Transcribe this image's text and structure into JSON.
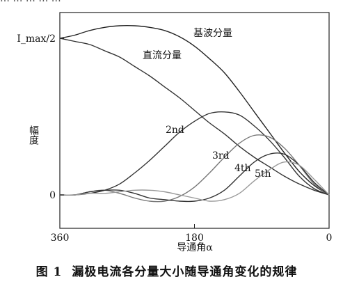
{
  "chart_data": {
    "type": "line",
    "x": [
      360,
      340,
      320,
      300,
      280,
      260,
      240,
      220,
      200,
      180,
      160,
      140,
      120,
      100,
      80,
      60,
      40,
      20,
      0
    ],
    "x_axis": {
      "label": "导通角α",
      "ticks": [
        "360",
        "180",
        "0"
      ],
      "range": [
        360,
        0
      ],
      "reversed": true
    },
    "y_axis": {
      "label": "幅度",
      "ticks": [
        "I_max/2",
        "0"
      ],
      "range_normalized": [
        0,
        1
      ]
    },
    "series": [
      {
        "name": "基波分量",
        "values": [
          1.0,
          1.02,
          1.05,
          1.07,
          1.08,
          1.08,
          1.07,
          1.05,
          1.01,
          0.95,
          0.87,
          0.78,
          0.66,
          0.53,
          0.4,
          0.27,
          0.15,
          0.06,
          0.0
        ]
      },
      {
        "name": "直流分量",
        "values": [
          1.0,
          0.98,
          0.96,
          0.92,
          0.88,
          0.82,
          0.76,
          0.69,
          0.62,
          0.54,
          0.46,
          0.39,
          0.31,
          0.24,
          0.18,
          0.12,
          0.07,
          0.03,
          0.0
        ]
      },
      {
        "name": "2nd",
        "values": [
          0.0,
          0.0,
          0.01,
          0.03,
          0.07,
          0.14,
          0.22,
          0.31,
          0.4,
          0.47,
          0.52,
          0.53,
          0.51,
          0.44,
          0.35,
          0.24,
          0.12,
          0.04,
          0.0
        ]
      },
      {
        "name": "3rd",
        "values": [
          0.0,
          0.0,
          0.02,
          0.03,
          0.01,
          -0.02,
          -0.04,
          -0.04,
          -0.01,
          0.05,
          0.14,
          0.24,
          0.33,
          0.38,
          0.37,
          0.3,
          0.19,
          0.07,
          0.0
        ]
      },
      {
        "name": "4th",
        "values": [
          0.0,
          0.0,
          0.02,
          0.03,
          0.03,
          0.01,
          -0.02,
          -0.03,
          -0.04,
          -0.04,
          -0.02,
          0.03,
          0.12,
          0.21,
          0.26,
          0.26,
          0.19,
          0.08,
          0.0
        ]
      },
      {
        "name": "5th",
        "values": [
          0.0,
          0.0,
          0.01,
          0.01,
          0.02,
          0.03,
          0.03,
          0.02,
          0.0,
          -0.02,
          -0.04,
          -0.03,
          0.01,
          0.09,
          0.16,
          0.21,
          0.19,
          0.1,
          0.0
        ]
      }
    ],
    "grid": false,
    "legend": "none (inline labels)"
  },
  "caption": {
    "figure_number": "图 1",
    "text": "漏极电流各分量大小随导通角变化的规律"
  },
  "top_cut_text": "… … … … …"
}
